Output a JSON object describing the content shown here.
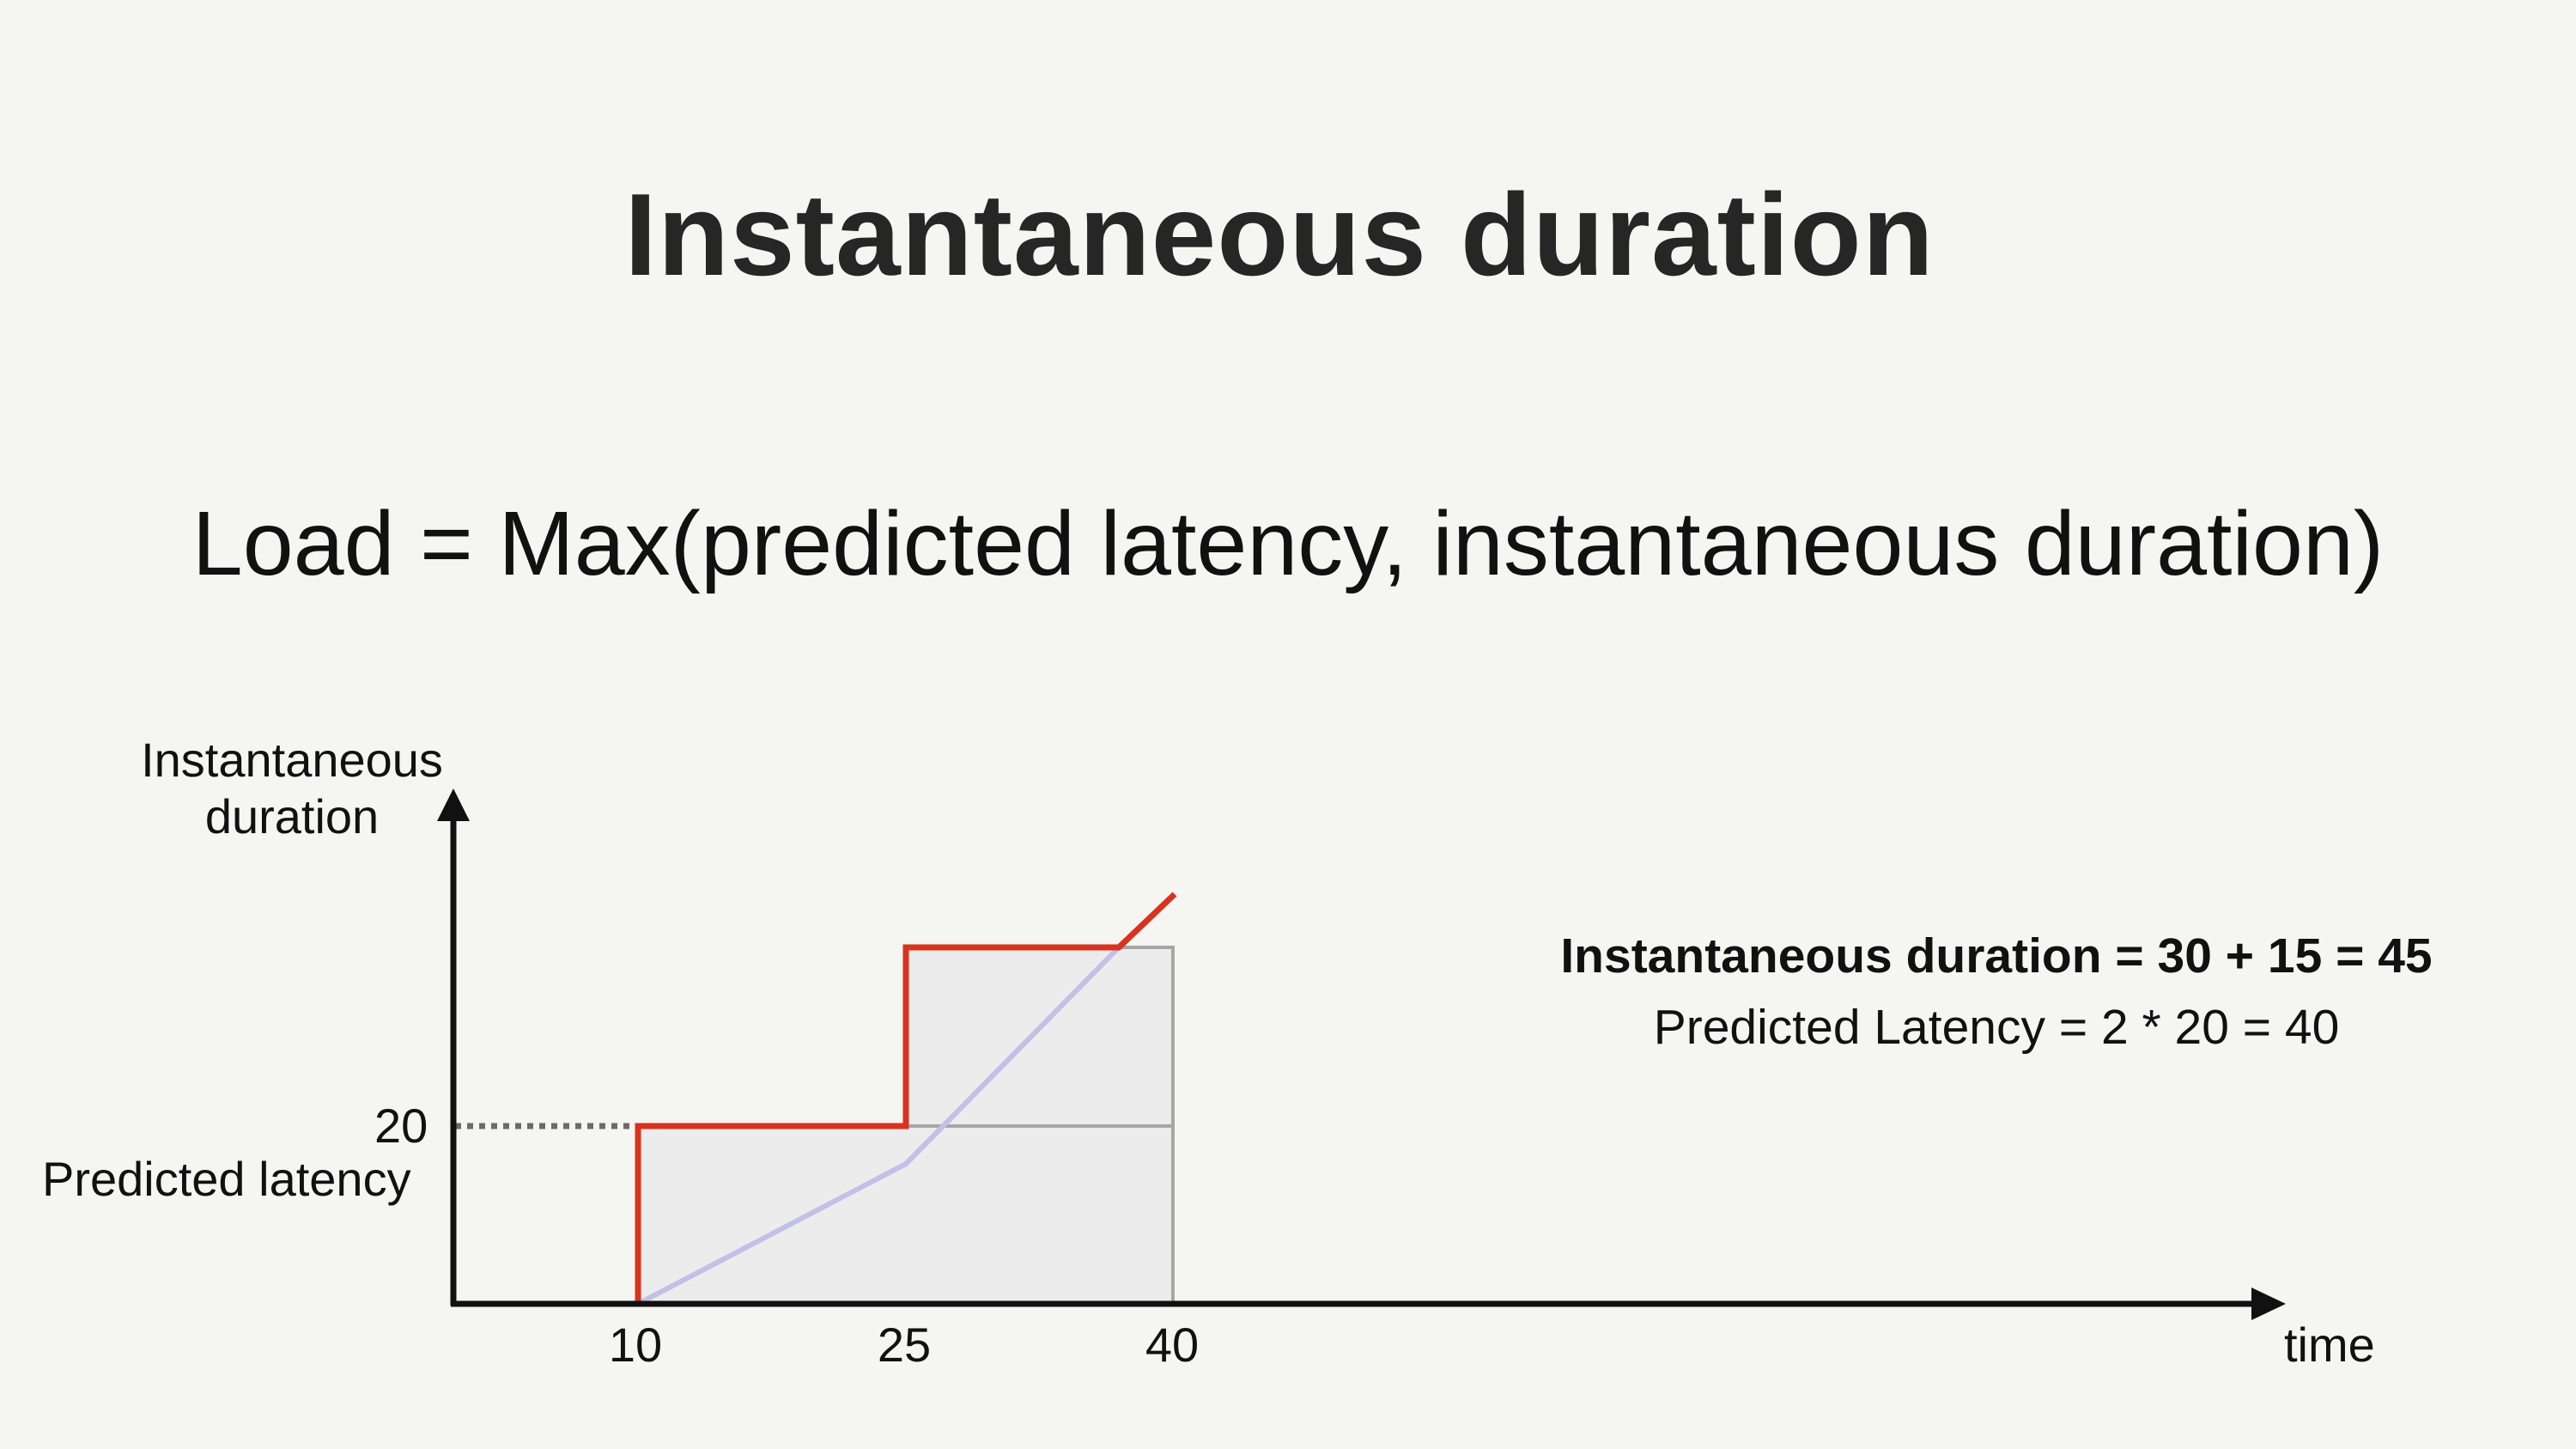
{
  "title": "Instantaneous duration",
  "formula": "Load = Max(predicted latency, instantaneous duration)",
  "diagram": {
    "y_axis_label_line1": "Instantaneous",
    "y_axis_label_line2": "duration",
    "x_axis_label": "time",
    "y_tick_value": "20",
    "y_tick_label": "Predicted latency",
    "x_ticks": [
      "10",
      "25",
      "40"
    ]
  },
  "notes": {
    "instantaneous": "Instantaneous duration = 30 + 15 = 45",
    "predicted": "Predicted Latency = 2 * 20 = 40"
  },
  "colors": {
    "background": "#f5f5f1",
    "step_line": "#d9321e",
    "diagonal_line": "#c3bfe6",
    "box_fill": "#ececec",
    "box_stroke": "#a6a6a6",
    "axis": "#111111",
    "dotted": "#6b6b6b"
  }
}
